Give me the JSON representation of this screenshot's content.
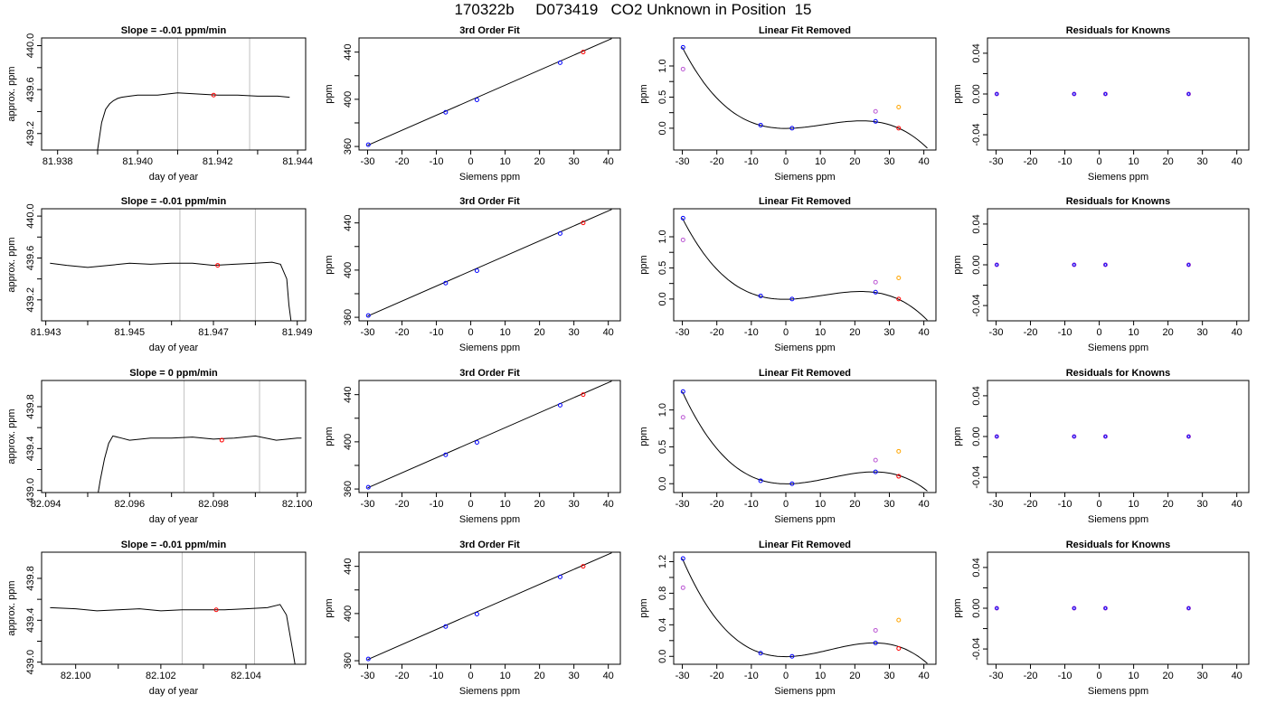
{
  "page": {
    "title": "170322b     D073419   CO2 Unknown in Position  15"
  },
  "colors": {
    "trace": "#000000",
    "reference_line": "#c0c0c0",
    "known": "#0000ff",
    "unknown": "#ff0000",
    "residual": "#9932cc",
    "orange_point": "#ffa500",
    "purple_point": "#ba55d3"
  },
  "chart_data": [
    {
      "id": "r1c1",
      "type": "line",
      "title": "Slope =  -0.01  ppm/min",
      "xlabel": "day of year",
      "ylabel": "approx. ppm",
      "xlim": [
        81.9376,
        81.9442
      ],
      "ylim": [
        439.05,
        440.07
      ],
      "xticks": [
        81.938,
        81.94,
        81.942,
        81.944
      ],
      "xtick_labels": [
        "81.938",
        "81.940",
        "81.942",
        "81.944"
      ],
      "yticks": [
        439.2,
        439.6,
        440.0
      ],
      "ytick_labels": [
        "439.2",
        "439.6",
        "440.0"
      ],
      "vlines": [
        81.941,
        81.9428
      ],
      "marker": {
        "x": 81.9419,
        "y": 439.55
      },
      "series": [
        {
          "x": [
            81.939,
            81.9391,
            81.9392,
            81.9393,
            81.9394,
            81.9395,
            81.9396,
            81.9398,
            81.94,
            81.9405,
            81.941,
            81.9415,
            81.942,
            81.9425,
            81.943,
            81.9435,
            81.9438
          ],
          "values": [
            439.05,
            439.3,
            439.42,
            439.47,
            439.5,
            439.52,
            439.53,
            439.54,
            439.55,
            439.55,
            439.57,
            439.56,
            439.55,
            439.55,
            439.54,
            439.54,
            439.53
          ]
        }
      ]
    },
    {
      "id": "r1c2",
      "type": "line",
      "title": "3rd Order Fit",
      "xlabel": "Siemens ppm",
      "ylabel": "ppm",
      "xlim": [
        -32.5,
        43.5
      ],
      "ylim": [
        357,
        452
      ],
      "xticks": [
        -30,
        -20,
        -10,
        0,
        10,
        20,
        30,
        40
      ],
      "xtick_labels": [
        "-30",
        "-20",
        "-10",
        "0",
        "10",
        "20",
        "30",
        "40"
      ],
      "yticks": [
        360,
        400,
        440
      ],
      "ytick_labels": [
        "360",
        "400",
        "440"
      ],
      "line": [
        [
          -30,
          361
        ],
        [
          41,
          451.5
        ]
      ],
      "points_blue": [
        [
          -29.8,
          361.5
        ],
        [
          -7.3,
          389
        ],
        [
          1.8,
          399.5
        ],
        [
          26,
          431
        ]
      ],
      "points_red": [
        [
          32.7,
          440
        ]
      ]
    },
    {
      "id": "r1c3",
      "type": "scatter",
      "title": "Linear Fit Removed",
      "xlabel": "Siemens ppm",
      "ylabel": "ppm",
      "xlim": [
        -32.5,
        43.5
      ],
      "ylim": [
        -0.35,
        1.45
      ],
      "xticks": [
        -30,
        -20,
        -10,
        0,
        10,
        20,
        30,
        40
      ],
      "xtick_labels": [
        "-30",
        "-20",
        "-10",
        "0",
        "10",
        "20",
        "30",
        "40"
      ],
      "yticks": [
        0,
        0.5,
        1.0
      ],
      "ytick_labels": [
        "0.0",
        "0.5",
        "1.0"
      ],
      "curve": {
        "x0": -30,
        "x1": 41,
        "x2": 2,
        "x3": 24,
        "y0": 1.3,
        "ymin": 0.0,
        "ymax": 0.115,
        "yend": -0.32
      },
      "points_blue": [
        [
          -29.8,
          1.3
        ],
        [
          -7.3,
          0.05
        ],
        [
          1.8,
          0.0
        ],
        [
          26,
          0.11
        ]
      ],
      "points_red": [
        [
          32.7,
          0.0
        ]
      ],
      "points_purple": [
        [
          -29.8,
          0.95
        ],
        [
          26,
          0.27
        ]
      ],
      "points_orange": [
        [
          32.7,
          0.34
        ]
      ]
    },
    {
      "id": "r1c4",
      "type": "scatter",
      "title": "Residuals for Knowns",
      "xlabel": "Siemens ppm",
      "ylabel": "ppm",
      "xlim": [
        -32.5,
        43.5
      ],
      "ylim": [
        -0.055,
        0.055
      ],
      "xticks": [
        -30,
        -20,
        -10,
        0,
        10,
        20,
        30,
        40
      ],
      "xtick_labels": [
        "-30",
        "-20",
        "-10",
        "0",
        "10",
        "20",
        "30",
        "40"
      ],
      "yticks": [
        -0.04,
        0,
        0.04
      ],
      "ytick_labels": [
        "-0.04",
        "0.00",
        "0.04"
      ],
      "points_residual": [
        [
          -29.8,
          0
        ],
        [
          -7.3,
          0
        ],
        [
          1.8,
          0
        ],
        [
          26,
          0
        ]
      ]
    },
    {
      "id": "r2c1",
      "type": "line",
      "title": "Slope =  -0.01  ppm/min",
      "xlabel": "day of year",
      "ylabel": "approx. ppm",
      "xlim": [
        81.9429,
        81.9492
      ],
      "ylim": [
        439.0,
        440.07
      ],
      "xticks": [
        81.943,
        81.945,
        81.947,
        81.949
      ],
      "xtick_labels": [
        "81.943",
        "81.945",
        "81.947",
        "81.949"
      ],
      "yticks": [
        439.2,
        439.6,
        440.0
      ],
      "ytick_labels": [
        "439.2",
        "439.6",
        "440.0"
      ],
      "vlines": [
        81.9462,
        81.948
      ],
      "marker": {
        "x": 81.9471,
        "y": 439.53
      },
      "series": [
        {
          "x": [
            81.9431,
            81.9435,
            81.944,
            81.9445,
            81.945,
            81.9455,
            81.946,
            81.9465,
            81.947,
            81.9475,
            81.948,
            81.9484,
            81.9486,
            81.94875,
            81.9488,
            81.94885
          ],
          "values": [
            439.55,
            439.53,
            439.51,
            439.53,
            439.55,
            439.54,
            439.55,
            439.55,
            439.53,
            439.54,
            439.55,
            439.56,
            439.54,
            439.4,
            439.15,
            439.0
          ]
        }
      ]
    },
    {
      "id": "r2c2",
      "type": "line",
      "title": "3rd Order Fit",
      "xlabel": "Siemens ppm",
      "ylabel": "ppm",
      "xlim": [
        -32.5,
        43.5
      ],
      "ylim": [
        357,
        452
      ],
      "xticks": [
        -30,
        -20,
        -10,
        0,
        10,
        20,
        30,
        40
      ],
      "xtick_labels": [
        "-30",
        "-20",
        "-10",
        "0",
        "10",
        "20",
        "30",
        "40"
      ],
      "yticks": [
        360,
        400,
        440
      ],
      "ytick_labels": [
        "360",
        "400",
        "440"
      ],
      "line": [
        [
          -30,
          361
        ],
        [
          41,
          451.5
        ]
      ],
      "points_blue": [
        [
          -29.8,
          361.5
        ],
        [
          -7.3,
          389
        ],
        [
          1.8,
          399.5
        ],
        [
          26,
          431
        ]
      ],
      "points_red": [
        [
          32.7,
          440
        ]
      ]
    },
    {
      "id": "r2c3",
      "type": "scatter",
      "title": "Linear Fit Removed",
      "xlabel": "Siemens ppm",
      "ylabel": "ppm",
      "xlim": [
        -32.5,
        43.5
      ],
      "ylim": [
        -0.35,
        1.45
      ],
      "xticks": [
        -30,
        -20,
        -10,
        0,
        10,
        20,
        30,
        40
      ],
      "xtick_labels": [
        "-30",
        "-20",
        "-10",
        "0",
        "10",
        "20",
        "30",
        "40"
      ],
      "yticks": [
        0,
        0.5,
        1.0
      ],
      "ytick_labels": [
        "0.0",
        "0.5",
        "1.0"
      ],
      "curve": {
        "x0": -30,
        "x1": 41,
        "x2": 2,
        "x3": 23,
        "y0": 1.3,
        "ymin": 0.0,
        "ymax": 0.12,
        "yend": -0.34
      },
      "points_blue": [
        [
          -29.8,
          1.3
        ],
        [
          -7.3,
          0.05
        ],
        [
          1.8,
          0.0
        ],
        [
          26,
          0.11
        ]
      ],
      "points_red": [
        [
          32.7,
          0.0
        ]
      ],
      "points_purple": [
        [
          -29.8,
          0.95
        ],
        [
          26,
          0.27
        ]
      ],
      "points_orange": [
        [
          32.7,
          0.34
        ]
      ]
    },
    {
      "id": "r2c4",
      "type": "scatter",
      "title": "Residuals for Knowns",
      "xlabel": "Siemens ppm",
      "ylabel": "ppm",
      "xlim": [
        -32.5,
        43.5
      ],
      "ylim": [
        -0.055,
        0.055
      ],
      "xticks": [
        -30,
        -20,
        -10,
        0,
        10,
        20,
        30,
        40
      ],
      "xtick_labels": [
        "-30",
        "-20",
        "-10",
        "0",
        "10",
        "20",
        "30",
        "40"
      ],
      "yticks": [
        -0.04,
        0,
        0.04
      ],
      "ytick_labels": [
        "-0.04",
        "0.00",
        "0.04"
      ],
      "points_residual": [
        [
          -29.8,
          0
        ],
        [
          -7.3,
          0
        ],
        [
          1.8,
          0
        ],
        [
          26,
          0
        ]
      ]
    },
    {
      "id": "r3c1",
      "type": "line",
      "title": "Slope =  0  ppm/min",
      "xlabel": "day of year",
      "ylabel": "approx. ppm",
      "xlim": [
        82.0939,
        82.1002
      ],
      "ylim": [
        438.98,
        440.05
      ],
      "xticks": [
        82.094,
        82.096,
        82.098,
        82.1
      ],
      "xtick_labels": [
        "82.094",
        "82.096",
        "82.098",
        "82.100"
      ],
      "yticks": [
        439.0,
        439.4,
        439.8
      ],
      "ytick_labels": [
        "439.0",
        "439.4",
        "439.8"
      ],
      "vlines": [
        82.0973,
        82.0991
      ],
      "marker": {
        "x": 82.0982,
        "y": 439.48
      },
      "series": [
        {
          "x": [
            82.09525,
            82.0953,
            82.0954,
            82.0955,
            82.0956,
            82.0958,
            82.096,
            82.0965,
            82.097,
            82.0975,
            82.098,
            82.0985,
            82.099,
            82.0995,
            82.1,
            82.1001
          ],
          "values": [
            438.98,
            439.1,
            439.3,
            439.45,
            439.52,
            439.5,
            439.48,
            439.5,
            439.5,
            439.51,
            439.49,
            439.5,
            439.52,
            439.48,
            439.5,
            439.5
          ]
        }
      ]
    },
    {
      "id": "r3c2",
      "type": "line",
      "title": "3rd Order Fit",
      "xlabel": "Siemens ppm",
      "ylabel": "ppm",
      "xlim": [
        -32.5,
        43.5
      ],
      "ylim": [
        357,
        452
      ],
      "xticks": [
        -30,
        -20,
        -10,
        0,
        10,
        20,
        30,
        40
      ],
      "xtick_labels": [
        "-30",
        "-20",
        "-10",
        "0",
        "10",
        "20",
        "30",
        "40"
      ],
      "yticks": [
        360,
        400,
        440
      ],
      "ytick_labels": [
        "360",
        "400",
        "440"
      ],
      "line": [
        [
          -30,
          361
        ],
        [
          41,
          451.5
        ]
      ],
      "points_blue": [
        [
          -29.8,
          361.5
        ],
        [
          -7.3,
          389
        ],
        [
          1.8,
          399.5
        ],
        [
          26,
          431
        ]
      ],
      "points_red": [
        [
          32.7,
          440
        ]
      ]
    },
    {
      "id": "r3c3",
      "type": "scatter",
      "title": "Linear Fit Removed",
      "xlabel": "Siemens ppm",
      "ylabel": "ppm",
      "xlim": [
        -32.5,
        43.5
      ],
      "ylim": [
        -0.12,
        1.4
      ],
      "xticks": [
        -30,
        -20,
        -10,
        0,
        10,
        20,
        30,
        40
      ],
      "xtick_labels": [
        "-30",
        "-20",
        "-10",
        "0",
        "10",
        "20",
        "30",
        "40"
      ],
      "yticks": [
        0,
        0.5,
        1.0
      ],
      "ytick_labels": [
        "0.0",
        "0.5",
        "1.0"
      ],
      "curve": {
        "x0": -30,
        "x1": 41,
        "x2": 2,
        "x3": 25,
        "y0": 1.25,
        "ymin": 0.0,
        "ymax": 0.16,
        "yend": -0.1
      },
      "points_blue": [
        [
          -29.8,
          1.25
        ],
        [
          -7.3,
          0.04
        ],
        [
          1.8,
          0.0
        ],
        [
          26,
          0.16
        ]
      ],
      "points_red": [
        [
          32.7,
          0.1
        ]
      ],
      "points_purple": [
        [
          -29.8,
          0.9
        ],
        [
          26,
          0.32
        ]
      ],
      "points_orange": [
        [
          32.7,
          0.44
        ]
      ]
    },
    {
      "id": "r3c4",
      "type": "scatter",
      "title": "Residuals for Knowns",
      "xlabel": "Siemens ppm",
      "ylabel": "ppm",
      "xlim": [
        -32.5,
        43.5
      ],
      "ylim": [
        -0.055,
        0.055
      ],
      "xticks": [
        -30,
        -20,
        -10,
        0,
        10,
        20,
        30,
        40
      ],
      "xtick_labels": [
        "-30",
        "-20",
        "-10",
        "0",
        "10",
        "20",
        "30",
        "40"
      ],
      "yticks": [
        -0.04,
        0,
        0.04
      ],
      "ytick_labels": [
        "-0.04",
        "0.00",
        "0.04"
      ],
      "points_residual": [
        [
          -29.8,
          0
        ],
        [
          -7.3,
          0
        ],
        [
          1.8,
          0
        ],
        [
          26,
          0
        ]
      ]
    },
    {
      "id": "r4c1",
      "type": "line",
      "title": "Slope =  -0.01  ppm/min",
      "xlabel": "day of year",
      "ylabel": "approx. ppm",
      "xlim": [
        82.0992,
        82.1054
      ],
      "ylim": [
        438.98,
        440.05
      ],
      "xticks": [
        82.1,
        82.102,
        82.104
      ],
      "xtick_labels": [
        "82.100",
        "82.102",
        "82.104"
      ],
      "yticks": [
        439.0,
        439.4,
        439.8
      ],
      "ytick_labels": [
        "439.0",
        "439.4",
        "439.8"
      ],
      "vlines": [
        82.1025,
        82.1042
      ],
      "marker": {
        "x": 82.1033,
        "y": 439.5
      },
      "series": [
        {
          "x": [
            82.0994,
            82.1,
            82.1005,
            82.101,
            82.1015,
            82.102,
            82.1025,
            82.103,
            82.1035,
            82.104,
            82.1045,
            82.1048,
            82.10495,
            82.1051,
            82.10515
          ],
          "values": [
            439.52,
            439.51,
            439.49,
            439.5,
            439.51,
            439.49,
            439.5,
            439.5,
            439.5,
            439.51,
            439.52,
            439.55,
            439.45,
            439.1,
            438.98
          ]
        }
      ]
    },
    {
      "id": "r4c2",
      "type": "line",
      "title": "3rd Order Fit",
      "xlabel": "Siemens ppm",
      "ylabel": "ppm",
      "xlim": [
        -32.5,
        43.5
      ],
      "ylim": [
        357,
        452
      ],
      "xticks": [
        -30,
        -20,
        -10,
        0,
        10,
        20,
        30,
        40
      ],
      "xtick_labels": [
        "-30",
        "-20",
        "-10",
        "0",
        "10",
        "20",
        "30",
        "40"
      ],
      "yticks": [
        360,
        400,
        440
      ],
      "ytick_labels": [
        "360",
        "400",
        "440"
      ],
      "line": [
        [
          -30,
          361
        ],
        [
          41,
          451.5
        ]
      ],
      "points_blue": [
        [
          -29.8,
          361.5
        ],
        [
          -7.3,
          389
        ],
        [
          1.8,
          399.5
        ],
        [
          26,
          431
        ]
      ],
      "points_red": [
        [
          32.7,
          440
        ]
      ]
    },
    {
      "id": "r4c3",
      "type": "scatter",
      "title": "Linear Fit Removed",
      "xlabel": "Siemens ppm",
      "ylabel": "ppm",
      "xlim": [
        -32.5,
        43.5
      ],
      "ylim": [
        -0.1,
        1.32
      ],
      "xticks": [
        -30,
        -20,
        -10,
        0,
        10,
        20,
        30,
        40
      ],
      "xtick_labels": [
        "-30",
        "-20",
        "-10",
        "0",
        "10",
        "20",
        "30",
        "40"
      ],
      "yticks": [
        0,
        0.4,
        0.8,
        1.2
      ],
      "ytick_labels": [
        "0.0",
        "0.4",
        "0.8",
        "1.2"
      ],
      "curve": {
        "x0": -30,
        "x1": 41,
        "x2": 2,
        "x3": 25,
        "y0": 1.24,
        "ymin": 0.0,
        "ymax": 0.17,
        "yend": -0.09
      },
      "points_blue": [
        [
          -29.8,
          1.24
        ],
        [
          -7.3,
          0.04
        ],
        [
          1.8,
          0.0
        ],
        [
          26,
          0.17
        ]
      ],
      "points_red": [
        [
          32.7,
          0.1
        ]
      ],
      "points_purple": [
        [
          -29.8,
          0.87
        ],
        [
          26,
          0.33
        ]
      ],
      "points_orange": [
        [
          32.7,
          0.46
        ]
      ]
    },
    {
      "id": "r4c4",
      "type": "scatter",
      "title": "Residuals for Knowns",
      "xlabel": "Siemens ppm",
      "ylabel": "ppm",
      "xlim": [
        -32.5,
        43.5
      ],
      "ylim": [
        -0.055,
        0.055
      ],
      "xticks": [
        -30,
        -20,
        -10,
        0,
        10,
        20,
        30,
        40
      ],
      "xtick_labels": [
        "-30",
        "-20",
        "-10",
        "0",
        "10",
        "20",
        "30",
        "40"
      ],
      "yticks": [
        -0.04,
        0,
        0.04
      ],
      "ytick_labels": [
        "-0.04",
        "0.00",
        "0.04"
      ],
      "points_residual": [
        [
          -29.8,
          0
        ],
        [
          -7.3,
          0
        ],
        [
          1.8,
          0
        ],
        [
          26,
          0
        ]
      ]
    }
  ]
}
